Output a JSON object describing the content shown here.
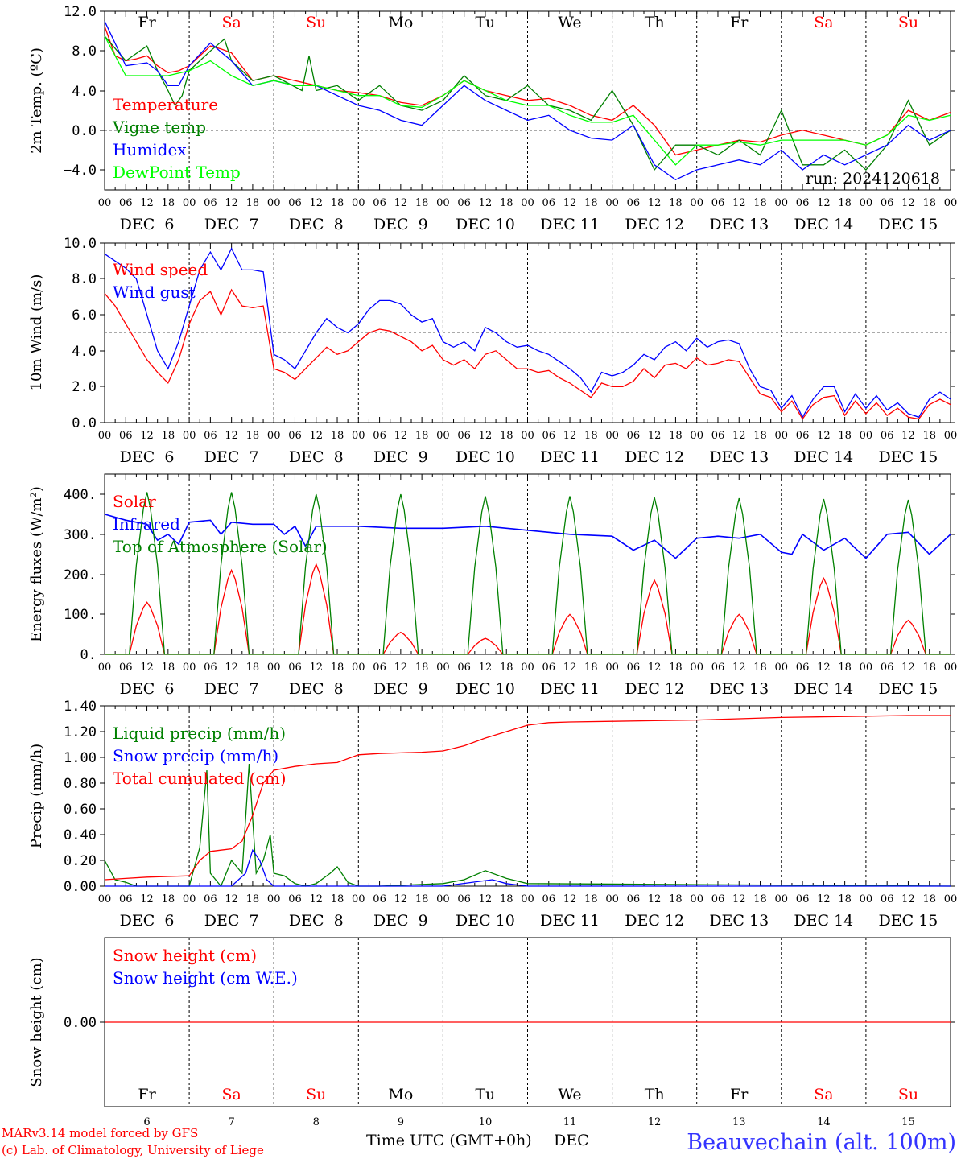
{
  "chart_data": [
    {
      "type": "line",
      "ylabel": "2m Temp. (ºC)",
      "ylim": [
        -6,
        12
      ],
      "yticks": [
        "12.0",
        "8.0",
        "4.0",
        "0.0",
        "−4.0"
      ],
      "annotation": "run: 2024120618",
      "series": [
        {
          "name": "Temperature",
          "color": "#ff0000",
          "x": [
            0,
            3,
            6,
            9,
            12,
            15,
            18,
            21,
            24,
            30,
            33,
            36,
            42,
            48,
            54,
            60,
            66,
            72,
            78,
            84,
            90,
            96,
            102,
            108,
            114,
            120,
            126,
            132,
            138,
            144,
            150,
            156,
            162,
            168,
            174,
            180,
            186,
            192,
            198,
            204,
            210,
            216,
            222,
            228,
            234,
            240
          ],
          "y": [
            10.5,
            7.5,
            7.0,
            7.2,
            7.5,
            6.5,
            5.8,
            6.0,
            6.5,
            8.5,
            8.2,
            7.8,
            5.0,
            5.5,
            5.0,
            4.5,
            4.0,
            3.8,
            3.5,
            2.8,
            2.5,
            3.5,
            5.0,
            4.0,
            3.5,
            3.0,
            3.2,
            2.5,
            1.5,
            1.0,
            2.5,
            0.5,
            -2.5,
            -2.0,
            -1.5,
            -1.0,
            -1.2,
            -0.5,
            0.0,
            -0.5,
            -1.0,
            -1.5,
            -0.5,
            2.0,
            1.0,
            1.8
          ]
        },
        {
          "name": "Vigne temp",
          "color": "#008000",
          "x": [
            0,
            6,
            12,
            15,
            18,
            20,
            22,
            24,
            30,
            34,
            36,
            42,
            48,
            56,
            58,
            60,
            66,
            72,
            78,
            84,
            90,
            96,
            102,
            108,
            114,
            120,
            126,
            132,
            138,
            144,
            150,
            156,
            162,
            168,
            174,
            180,
            186,
            192,
            198,
            204,
            210,
            216,
            222,
            228,
            234,
            240
          ],
          "y": [
            9.5,
            7.0,
            8.5,
            6.0,
            4.0,
            2.5,
            3.5,
            6.0,
            8.0,
            9.2,
            7.0,
            5.0,
            5.5,
            4.0,
            7.5,
            4.0,
            4.5,
            3.0,
            4.5,
            2.5,
            2.0,
            3.0,
            5.5,
            3.5,
            3.0,
            4.5,
            2.5,
            2.0,
            1.0,
            4.0,
            0.5,
            -4.0,
            -1.5,
            -1.5,
            -2.5,
            -1.0,
            -2.5,
            2.0,
            -3.5,
            -3.5,
            -2.0,
            -4.0,
            -1.5,
            3.0,
            -1.5,
            0.0
          ]
        },
        {
          "name": "Humidex",
          "color": "#0000ff",
          "x": [
            0,
            6,
            12,
            15,
            18,
            21,
            24,
            30,
            36,
            42,
            48,
            54,
            60,
            66,
            72,
            78,
            84,
            90,
            96,
            102,
            108,
            114,
            120,
            126,
            132,
            138,
            144,
            150,
            156,
            162,
            168,
            174,
            180,
            186,
            192,
            198,
            204,
            210,
            216,
            222,
            228,
            234,
            240
          ],
          "y": [
            11.0,
            6.5,
            6.8,
            6.0,
            4.5,
            4.5,
            6.5,
            8.8,
            7.0,
            4.5,
            5.0,
            4.5,
            4.5,
            3.5,
            2.5,
            2.0,
            1.0,
            0.5,
            2.5,
            4.5,
            3.0,
            2.0,
            1.0,
            1.5,
            0.0,
            -0.8,
            -1.0,
            0.5,
            -3.5,
            -5.0,
            -4.0,
            -3.5,
            -3.0,
            -3.5,
            -2.0,
            -4.0,
            -2.5,
            -3.5,
            -2.5,
            -1.5,
            0.5,
            -1.0,
            0.0
          ]
        },
        {
          "name": "DewPoint Temp",
          "color": "#00ff00",
          "x": [
            0,
            6,
            12,
            18,
            24,
            30,
            36,
            42,
            48,
            54,
            60,
            66,
            72,
            78,
            84,
            90,
            96,
            102,
            108,
            114,
            120,
            126,
            132,
            138,
            144,
            150,
            156,
            162,
            168,
            174,
            180,
            186,
            192,
            198,
            204,
            210,
            216,
            222,
            228,
            234,
            240
          ],
          "y": [
            9.5,
            5.5,
            5.5,
            5.5,
            6.0,
            7.0,
            5.5,
            4.5,
            5.0,
            4.5,
            4.5,
            4.0,
            3.5,
            3.5,
            2.5,
            2.3,
            3.5,
            5.0,
            4.0,
            3.0,
            2.5,
            2.5,
            1.5,
            0.8,
            0.8,
            1.5,
            -1.0,
            -3.5,
            -1.5,
            -1.5,
            -1.2,
            -1.5,
            -1.0,
            -1.0,
            -1.0,
            -1.0,
            -1.5,
            -0.5,
            1.5,
            1.0,
            1.5
          ]
        }
      ]
    },
    {
      "type": "line",
      "ylabel": "10m Wind (m/s)",
      "ylim": [
        0,
        10
      ],
      "yticks": [
        "10.0",
        "8.0",
        "6.0",
        "4.0",
        "2.0",
        "0.0"
      ],
      "series": [
        {
          "name": "Wind speed",
          "color": "#ff0000",
          "x": [
            0,
            3,
            6,
            9,
            12,
            15,
            18,
            21,
            24,
            27,
            30,
            33,
            36,
            39,
            42,
            45,
            48,
            51,
            54,
            57,
            60,
            63,
            66,
            69,
            72,
            75,
            78,
            81,
            84,
            87,
            90,
            93,
            96,
            99,
            102,
            105,
            108,
            111,
            114,
            117,
            120,
            123,
            126,
            129,
            132,
            135,
            138,
            141,
            144,
            147,
            150,
            153,
            156,
            159,
            162,
            165,
            168,
            171,
            174,
            177,
            180,
            183,
            186,
            189,
            192,
            195,
            198,
            201,
            204,
            207,
            210,
            213,
            216,
            219,
            222,
            225,
            228,
            231,
            234,
            237,
            240
          ],
          "y": [
            7.2,
            6.5,
            5.5,
            4.5,
            3.5,
            2.8,
            2.2,
            3.5,
            5.5,
            6.8,
            7.3,
            6.0,
            7.4,
            6.5,
            6.4,
            6.5,
            3.0,
            2.8,
            2.4,
            3.0,
            3.6,
            4.2,
            3.8,
            4.0,
            4.5,
            5.0,
            5.2,
            5.1,
            4.8,
            4.5,
            4.0,
            4.3,
            3.5,
            3.2,
            3.5,
            3.0,
            3.8,
            4.0,
            3.5,
            3.0,
            3.0,
            2.8,
            2.9,
            2.5,
            2.2,
            1.8,
            1.4,
            2.2,
            2.0,
            2.0,
            2.3,
            3.0,
            2.5,
            3.2,
            3.3,
            3.0,
            3.6,
            3.2,
            3.3,
            3.5,
            3.4,
            2.5,
            1.6,
            1.4,
            0.6,
            1.2,
            0.2,
            1.0,
            1.4,
            1.5,
            0.4,
            1.2,
            0.5,
            1.1,
            0.4,
            0.8,
            0.3,
            0.2,
            1.0,
            1.3,
            1.0
          ]
        },
        {
          "name": "Wind gust",
          "color": "#0000ff",
          "x": [
            0,
            3,
            6,
            9,
            12,
            15,
            18,
            21,
            24,
            27,
            30,
            33,
            36,
            39,
            42,
            45,
            48,
            51,
            54,
            57,
            60,
            63,
            66,
            69,
            72,
            75,
            78,
            81,
            84,
            87,
            90,
            93,
            96,
            99,
            102,
            105,
            108,
            111,
            114,
            117,
            120,
            123,
            126,
            129,
            132,
            135,
            138,
            141,
            144,
            147,
            150,
            153,
            156,
            159,
            162,
            165,
            168,
            171,
            174,
            177,
            180,
            183,
            186,
            189,
            192,
            195,
            198,
            201,
            204,
            207,
            210,
            213,
            216,
            219,
            222,
            225,
            228,
            231,
            234,
            237,
            240
          ],
          "y": [
            9.4,
            9.0,
            8.6,
            8.0,
            6.0,
            4.0,
            3.0,
            4.5,
            6.5,
            8.5,
            9.5,
            8.5,
            9.7,
            8.5,
            8.5,
            8.4,
            3.8,
            3.5,
            3.0,
            4.0,
            5.0,
            5.8,
            5.3,
            5.0,
            5.5,
            6.3,
            6.8,
            6.8,
            6.6,
            6.0,
            5.6,
            5.8,
            4.5,
            4.2,
            4.5,
            4.0,
            5.3,
            5.0,
            4.5,
            4.2,
            4.3,
            4.0,
            3.8,
            3.4,
            3.0,
            2.5,
            1.7,
            2.8,
            2.6,
            2.8,
            3.2,
            3.8,
            3.5,
            4.2,
            4.5,
            4.0,
            4.7,
            4.2,
            4.5,
            4.6,
            4.4,
            3.0,
            2.0,
            1.8,
            0.8,
            1.5,
            0.3,
            1.3,
            2.0,
            2.0,
            0.6,
            1.6,
            0.8,
            1.5,
            0.7,
            1.1,
            0.5,
            0.3,
            1.3,
            1.7,
            1.3
          ]
        }
      ]
    },
    {
      "type": "line",
      "ylabel": "Energy fluxes (W/m²)",
      "ylim": [
        0,
        420
      ],
      "yticks": [
        "400.",
        "300.",
        "200.",
        "100.",
        "0."
      ],
      "series": [
        {
          "name": "Solar",
          "color": "#ff0000",
          "daily_peaks_at_hour_12": [
            130,
            210,
            225,
            55,
            40,
            100,
            185,
            100,
            190,
            85
          ]
        },
        {
          "name": "Infrared",
          "color": "#0000ff",
          "x": [
            0,
            6,
            12,
            15,
            18,
            21,
            24,
            30,
            33,
            36,
            42,
            48,
            51,
            54,
            57,
            60,
            66,
            72,
            84,
            96,
            108,
            120,
            132,
            144,
            150,
            156,
            162,
            168,
            174,
            180,
            186,
            192,
            195,
            198,
            204,
            210,
            216,
            222,
            228,
            234,
            240
          ],
          "y": [
            350,
            335,
            325,
            285,
            300,
            275,
            330,
            335,
            300,
            330,
            325,
            325,
            300,
            320,
            270,
            320,
            320,
            320,
            315,
            315,
            320,
            310,
            300,
            295,
            260,
            285,
            240,
            290,
            295,
            290,
            300,
            255,
            250,
            300,
            260,
            290,
            240,
            300,
            305,
            250,
            300
          ]
        },
        {
          "name": "Top of Atmosphere (Solar)",
          "color": "#008000",
          "daily_peaks_at_hour_12": [
            405,
            405,
            400,
            400,
            395,
            395,
            392,
            390,
            388,
            386
          ]
        }
      ]
    },
    {
      "type": "line",
      "ylabel": "Precip (mm/h)",
      "ylim": [
        0,
        1.4
      ],
      "yticks": [
        "1.40",
        "1.20",
        "1.00",
        "0.80",
        "0.60",
        "0.40",
        "0.20",
        "0.00"
      ],
      "series": [
        {
          "name": "Liquid precip (mm/h)",
          "color": "#008000",
          "x": [
            0,
            3,
            6,
            9,
            24,
            27,
            29,
            30,
            33,
            36,
            39,
            41,
            43,
            45,
            47,
            48,
            51,
            54,
            57,
            60,
            64,
            66,
            69,
            72,
            78,
            96,
            102,
            108,
            114,
            120,
            240
          ],
          "y": [
            0.2,
            0.05,
            0.03,
            0.0,
            0.0,
            0.3,
            0.9,
            0.1,
            0.0,
            0.2,
            0.1,
            0.95,
            0.1,
            0.2,
            0.4,
            0.1,
            0.08,
            0.02,
            0.0,
            0.02,
            0.1,
            0.15,
            0.03,
            0.0,
            0.0,
            0.02,
            0.05,
            0.12,
            0.06,
            0.02,
            0.0
          ]
        },
        {
          "name": "Snow precip (mm/h)",
          "color": "#0000ff",
          "x": [
            0,
            36,
            40,
            42,
            44,
            46,
            48,
            60,
            96,
            110,
            114,
            120,
            240
          ],
          "y": [
            0.0,
            0.0,
            0.1,
            0.28,
            0.2,
            0.05,
            0.0,
            0.0,
            0.0,
            0.05,
            0.02,
            0.0,
            0.0
          ]
        },
        {
          "name": "Total cumulated (cm)",
          "color": "#ff0000",
          "x": [
            0,
            6,
            12,
            18,
            24,
            27,
            30,
            33,
            36,
            39,
            42,
            45,
            48,
            54,
            60,
            66,
            72,
            78,
            84,
            90,
            96,
            102,
            108,
            114,
            120,
            126,
            132,
            144,
            156,
            168,
            180,
            192,
            204,
            216,
            228,
            240
          ],
          "y": [
            0.05,
            0.06,
            0.07,
            0.075,
            0.08,
            0.2,
            0.27,
            0.28,
            0.29,
            0.35,
            0.55,
            0.8,
            0.9,
            0.93,
            0.95,
            0.96,
            1.02,
            1.03,
            1.035,
            1.04,
            1.05,
            1.09,
            1.15,
            1.2,
            1.25,
            1.27,
            1.275,
            1.28,
            1.285,
            1.29,
            1.3,
            1.31,
            1.315,
            1.32,
            1.325,
            1.325
          ]
        }
      ]
    },
    {
      "type": "line",
      "ylabel": "Snow height (cm)",
      "yticks": [
        "0.00"
      ],
      "series": [
        {
          "name": "Snow height (cm)",
          "color": "#ff0000",
          "x": [
            0,
            240
          ],
          "y": [
            0,
            0
          ]
        },
        {
          "name": "Snow height (cm W.E.)",
          "color": "#0000ff"
        }
      ]
    }
  ],
  "day_names_top": [
    "Fr",
    "Sa",
    "Su",
    "Mo",
    "Tu",
    "We",
    "Th",
    "Fr",
    "Sa",
    "Su"
  ],
  "day_names_bottom": [
    "Fr",
    "Sa",
    "Su",
    "Mo",
    "Tu",
    "We",
    "Th",
    "Fr",
    "Sa",
    "Su"
  ],
  "weekend_color": "#ff0000",
  "hour_labels": [
    "00",
    "06",
    "12",
    "18"
  ],
  "hour_label_end": "00",
  "date_labels": [
    "DEC  6",
    "DEC  7",
    "DEC  8",
    "DEC  9",
    "DEC 10",
    "DEC 11",
    "DEC 12",
    "DEC 13",
    "DEC 14",
    "DEC 15"
  ],
  "day_numbers": [
    "6",
    "7",
    "8",
    "9",
    "10",
    "11",
    "12",
    "13",
    "14",
    "15"
  ],
  "x_axis_title": "Time UTC (GMT+0h)",
  "month_label": "DEC",
  "footer": {
    "model": "MARv3.14 model forced by GFS",
    "copyright": "(c) Lab. of Climatology, University of Liege",
    "station": "Beauvechain (alt. 100m)"
  }
}
